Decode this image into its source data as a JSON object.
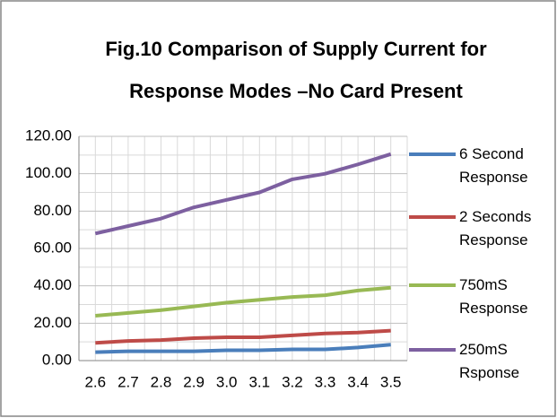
{
  "chart_data": {
    "type": "line",
    "title": "Fig.10 Comparison of Supply Current for",
    "subtitle": "Response Modes –No Card Present",
    "categories": [
      "2.6",
      "2.7",
      "2.8",
      "2.9",
      "3.0",
      "3.1",
      "3.2",
      "3.3",
      "3.4",
      "3.5"
    ],
    "series": [
      {
        "name": "6 Second Response",
        "color": "#4a7ebb",
        "values": [
          4.5,
          5,
          5,
          5,
          5.5,
          5.5,
          6,
          6,
          7,
          8.5
        ]
      },
      {
        "name": "2 Seconds Response",
        "color": "#be4b48",
        "values": [
          9.5,
          10.5,
          11,
          12,
          12.5,
          12.5,
          13.5,
          14.5,
          15,
          16
        ]
      },
      {
        "name": "750mS Response",
        "color": "#98b954",
        "values": [
          24,
          25.5,
          27,
          29,
          31,
          32.5,
          34,
          35,
          37.5,
          39
        ]
      },
      {
        "name": "250mS Rsponse",
        "color": "#7d60a0",
        "values": [
          68,
          72,
          76,
          82,
          86,
          90,
          97,
          100,
          105,
          110.5
        ]
      }
    ],
    "ylim": [
      0,
      120
    ],
    "yticks": [
      {
        "value": 0,
        "label": "0.00"
      },
      {
        "value": 20,
        "label": "20.00"
      },
      {
        "value": 40,
        "label": "40.00"
      },
      {
        "value": 60,
        "label": "60.00"
      },
      {
        "value": 80,
        "label": "80.00"
      },
      {
        "value": 100,
        "label": "100.00"
      },
      {
        "value": 120,
        "label": "120.00"
      }
    ],
    "grid": true
  }
}
